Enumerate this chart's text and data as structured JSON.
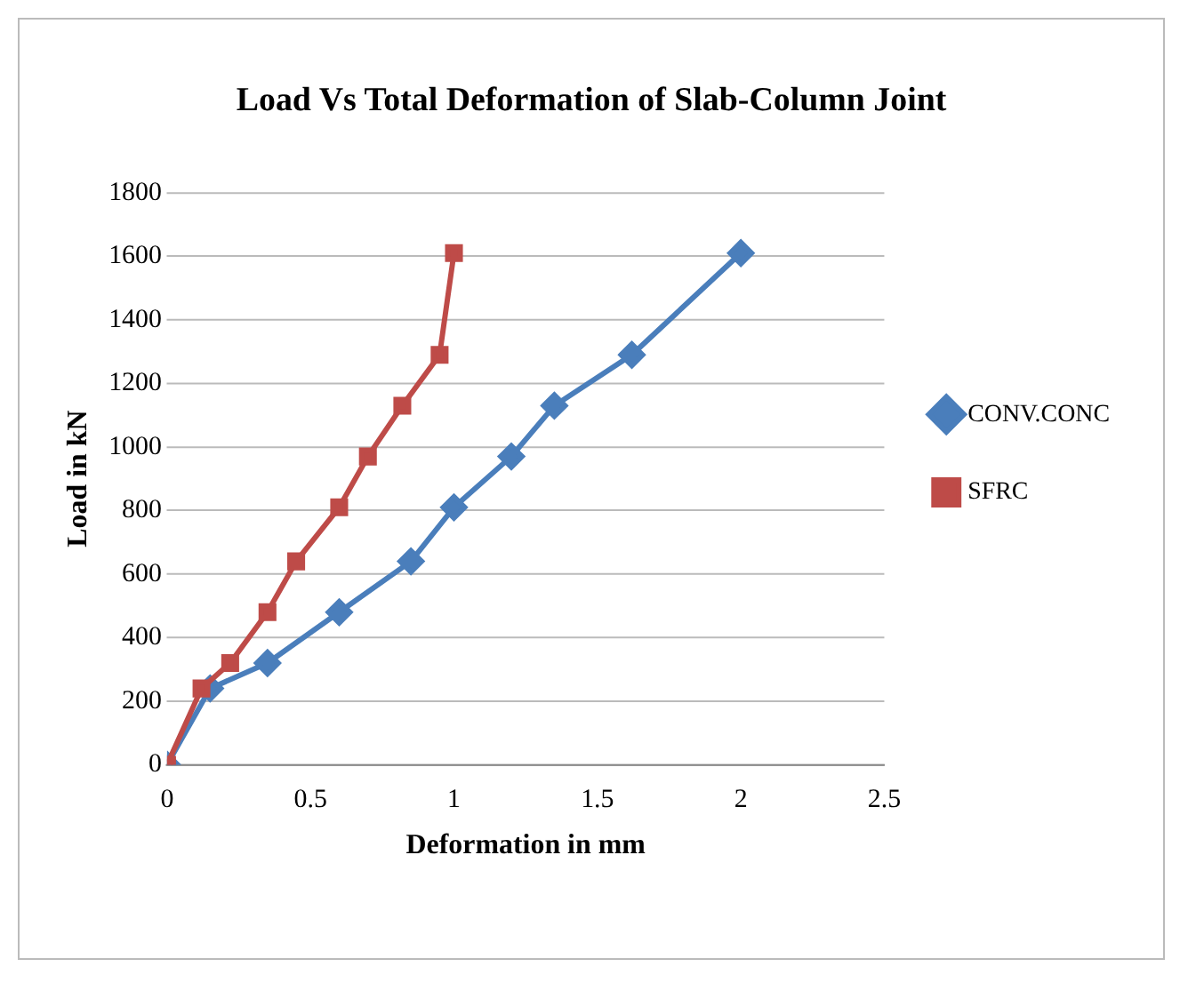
{
  "chart_data": {
    "type": "line",
    "title": "Load Vs Total Deformation of Slab-Column Joint",
    "xlabel": "Deformation in mm",
    "ylabel": "Load in kN",
    "xlim": [
      0,
      2.5
    ],
    "xticks": [
      0,
      0.5,
      1,
      1.5,
      2,
      2.5
    ],
    "ylim": [
      0,
      1800
    ],
    "yticks": [
      0,
      200,
      400,
      600,
      800,
      1000,
      1200,
      1400,
      1600,
      1800
    ],
    "grid": "y",
    "legend": "right",
    "series": [
      {
        "name": "CONV.CONC",
        "color": "#4a7ebb",
        "marker": "diamond",
        "x": [
          0,
          0.15,
          0.35,
          0.6,
          0.85,
          1.0,
          1.2,
          1.35,
          1.62,
          2.0
        ],
        "values": [
          0,
          240,
          320,
          480,
          640,
          810,
          970,
          1130,
          1290,
          1610
        ]
      },
      {
        "name": "SFRC",
        "color": "#be4b48",
        "marker": "square",
        "x": [
          0,
          0.12,
          0.22,
          0.35,
          0.45,
          0.6,
          0.7,
          0.82,
          0.95,
          1.0
        ],
        "values": [
          0,
          240,
          320,
          480,
          640,
          810,
          970,
          1130,
          1290,
          1610
        ]
      }
    ]
  }
}
